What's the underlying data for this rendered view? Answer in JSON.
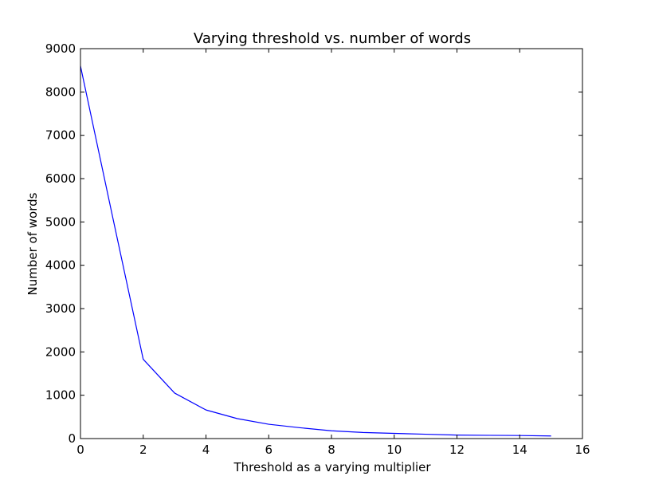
{
  "chart_data": {
    "type": "line",
    "title": "Varying threshold vs. number of words",
    "xlabel": "Threshold as a varying multiplier",
    "ylabel": "Number of words",
    "xlim": [
      0,
      16
    ],
    "ylim": [
      0,
      9000
    ],
    "xticks": [
      0,
      2,
      4,
      6,
      8,
      10,
      12,
      14,
      16
    ],
    "yticks": [
      0,
      1000,
      2000,
      3000,
      4000,
      5000,
      6000,
      7000,
      8000,
      9000
    ],
    "grid": false,
    "series": [
      {
        "color": "#0000ff",
        "x": [
          0,
          1,
          2,
          3,
          4,
          5,
          6,
          7,
          8,
          9,
          10,
          11,
          12,
          13,
          14,
          15
        ],
        "y": [
          8600,
          5200,
          1830,
          1050,
          660,
          460,
          330,
          250,
          180,
          140,
          120,
          100,
          80,
          75,
          70,
          60
        ]
      }
    ]
  }
}
